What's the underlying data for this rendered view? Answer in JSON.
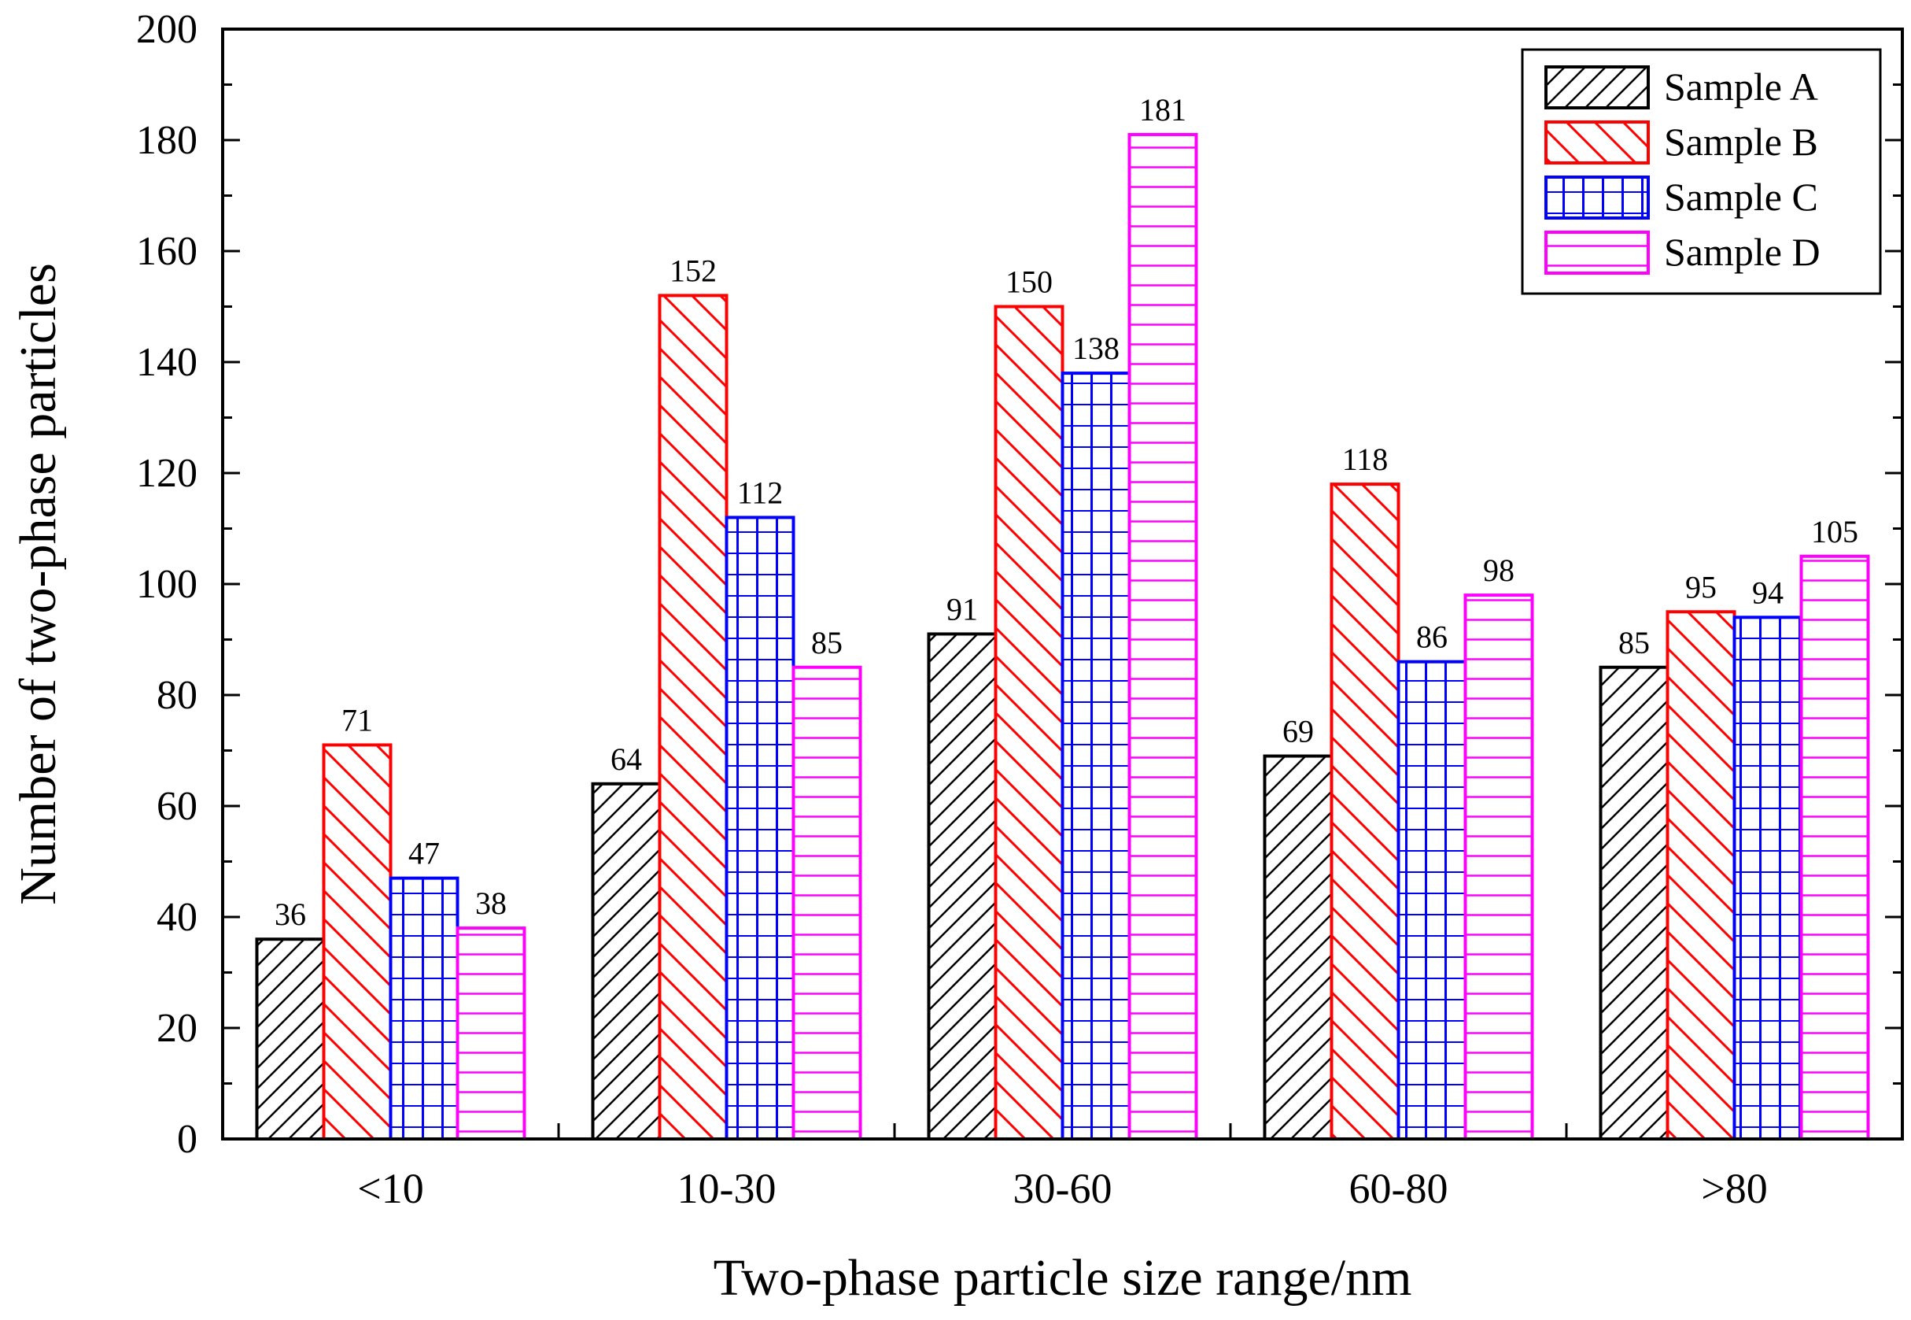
{
  "chart_data": {
    "type": "bar",
    "title": "",
    "xlabel": "Two-phase particle size range/nm",
    "ylabel": "Number of two-phase particles",
    "categories": [
      "<10",
      "10-30",
      "30-60",
      "60-80",
      ">80"
    ],
    "ylim": [
      0,
      200
    ],
    "yticks": [
      0,
      20,
      40,
      60,
      80,
      100,
      120,
      140,
      160,
      180,
      200
    ],
    "ytick_labels": [
      "0",
      "20",
      "40",
      "60",
      "80",
      "100",
      "120",
      "140",
      "160",
      "180",
      "200"
    ],
    "grid": false,
    "legend_position": "top-right",
    "series": [
      {
        "name": "Sample A",
        "values": [
          36,
          64,
          91,
          69,
          85
        ],
        "color": "#000000",
        "pattern": "diagonal-forward"
      },
      {
        "name": "Sample B",
        "values": [
          71,
          152,
          150,
          118,
          95
        ],
        "color": "#ff0000",
        "pattern": "diagonal-back"
      },
      {
        "name": "Sample C",
        "values": [
          47,
          112,
          138,
          86,
          94
        ],
        "color": "#0000ff",
        "pattern": "grid"
      },
      {
        "name": "Sample D",
        "values": [
          38,
          85,
          181,
          98,
          105
        ],
        "color": "#ff00ff",
        "pattern": "horizontal"
      }
    ]
  }
}
